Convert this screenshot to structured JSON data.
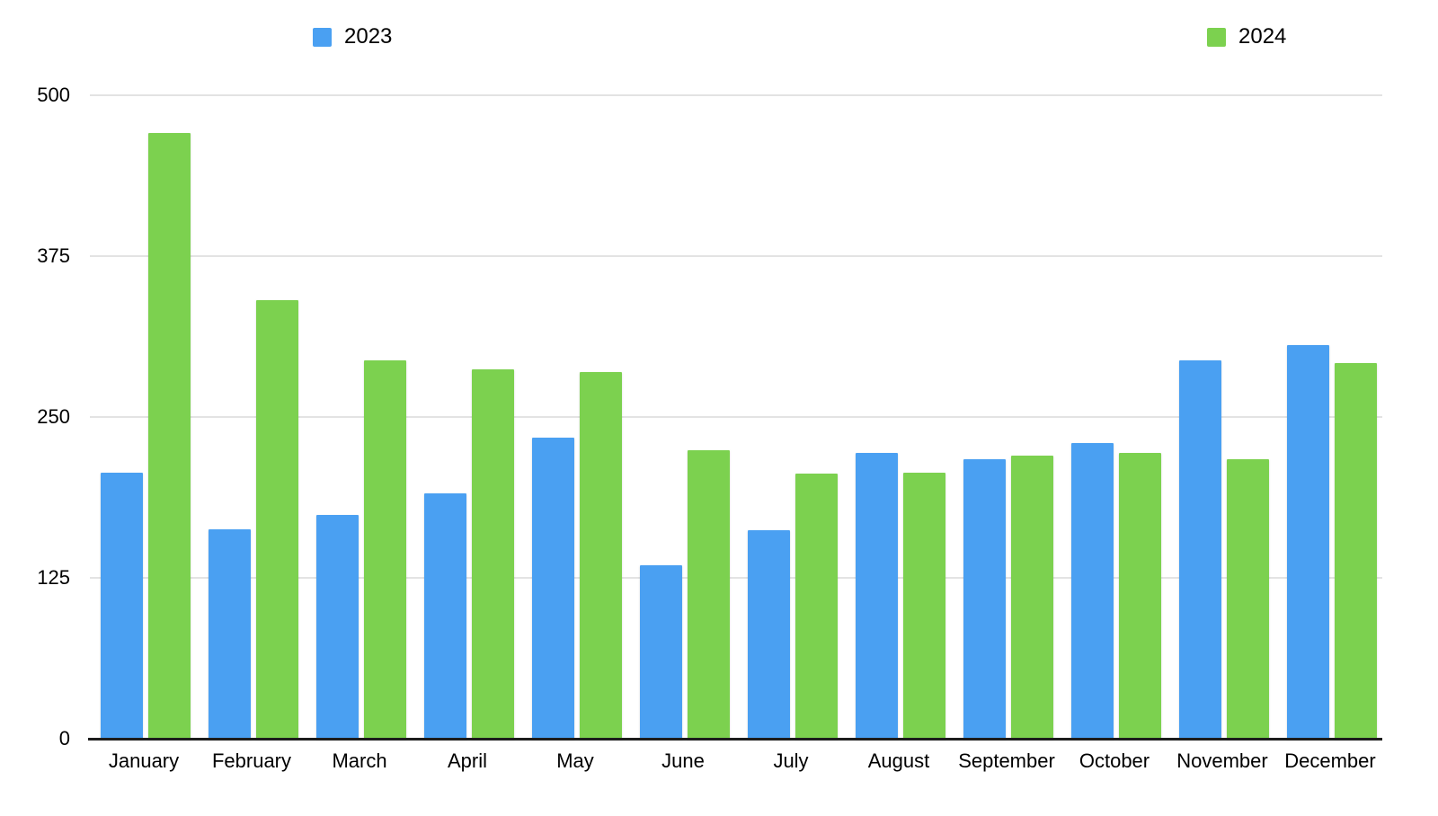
{
  "chart_data": {
    "type": "bar",
    "title": "",
    "xlabel": "",
    "ylabel": "",
    "categories": [
      "January",
      "February",
      "March",
      "April",
      "May",
      "June",
      "July",
      "August",
      "September",
      "October",
      "November",
      "December"
    ],
    "series": [
      {
        "name": "2023",
        "color": "#4aa0f2",
        "values": [
          207,
          163,
          174,
          191,
          234,
          135,
          162,
          222,
          217,
          230,
          294,
          306
        ]
      },
      {
        "name": "2024",
        "color": "#7cd14f",
        "values": [
          471,
          341,
          294,
          287,
          285,
          224,
          206,
          207,
          220,
          222,
          217,
          292
        ]
      }
    ],
    "ylim": [
      0,
      500
    ],
    "y_ticks": [
      0,
      125,
      250,
      375,
      500
    ],
    "grid": true,
    "legend_position": "top"
  },
  "colors": {
    "background": "#ffffff",
    "gridline": "#e3e3e3",
    "axis_line": "#1d1d1d",
    "text": "#000000"
  }
}
